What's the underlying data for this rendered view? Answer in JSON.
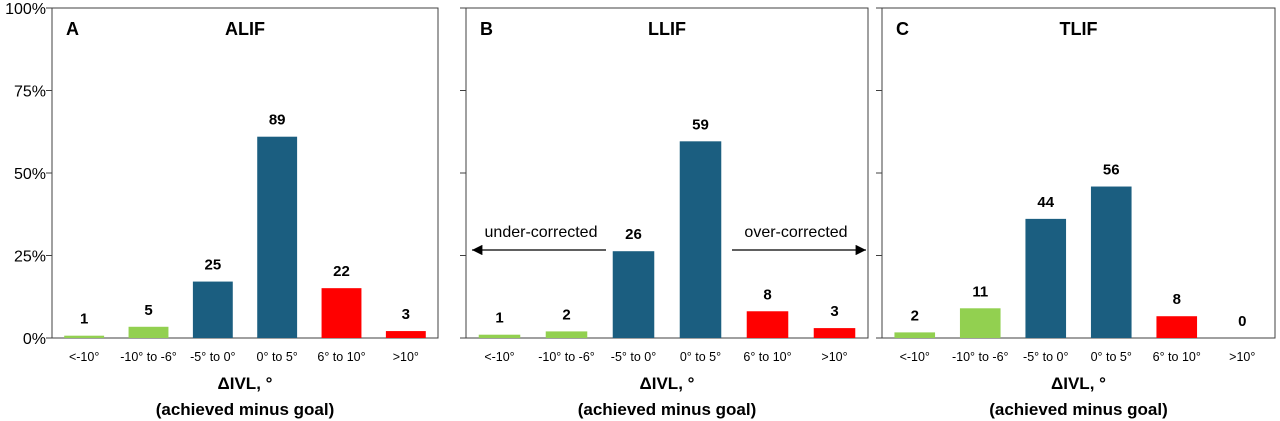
{
  "y_ticks": [
    "0%",
    "25%",
    "50%",
    "75%",
    "100%"
  ],
  "colors": {
    "green": "#92D050",
    "blue": "#1B5E80",
    "red": "#FF0000"
  },
  "annotations": {
    "left": "under-corrected",
    "right": "over-corrected"
  },
  "chart_data": [
    {
      "type": "bar",
      "panel_letter": "A",
      "title": "ALIF",
      "categories": [
        "<-10°",
        "-10° to -6°",
        "-5° to 0°",
        "0° to 5°",
        "6° to 10°",
        ">10°"
      ],
      "counts": [
        1,
        5,
        25,
        89,
        22,
        3
      ],
      "percent_values": [
        0.7,
        3.4,
        17.1,
        61.0,
        15.1,
        2.1
      ],
      "bar_colors": [
        "green",
        "green",
        "blue",
        "blue",
        "red",
        "red"
      ],
      "xlabel": "ΔIVL, °",
      "xlabel_sub": "(achieved minus goal)",
      "ylim": [
        0,
        100
      ],
      "grid": false
    },
    {
      "type": "bar",
      "panel_letter": "B",
      "title": "LLIF",
      "categories": [
        "<-10°",
        "-10° to -6°",
        "-5° to 0°",
        "0° to 5°",
        "6° to 10°",
        ">10°"
      ],
      "counts": [
        1,
        2,
        26,
        59,
        8,
        3
      ],
      "percent_values": [
        1.0,
        2.0,
        26.3,
        59.6,
        8.1,
        3.0
      ],
      "bar_colors": [
        "green",
        "green",
        "blue",
        "blue",
        "red",
        "red"
      ],
      "xlabel": "ΔIVL, °",
      "xlabel_sub": "(achieved minus goal)",
      "ylim": [
        0,
        100
      ],
      "grid": false
    },
    {
      "type": "bar",
      "panel_letter": "C",
      "title": "TLIF",
      "categories": [
        "<-10°",
        "-10° to -6°",
        "-5° to 0°",
        "0° to 5°",
        "6° to 10°",
        ">10°"
      ],
      "counts": [
        2,
        11,
        44,
        56,
        8,
        0
      ],
      "percent_values": [
        1.7,
        9.0,
        36.1,
        45.9,
        6.6,
        0.0
      ],
      "bar_colors": [
        "green",
        "green",
        "blue",
        "blue",
        "red",
        "red"
      ],
      "xlabel": "ΔIVL, °",
      "xlabel_sub": "(achieved minus goal)",
      "ylim": [
        0,
        100
      ],
      "grid": false
    }
  ]
}
